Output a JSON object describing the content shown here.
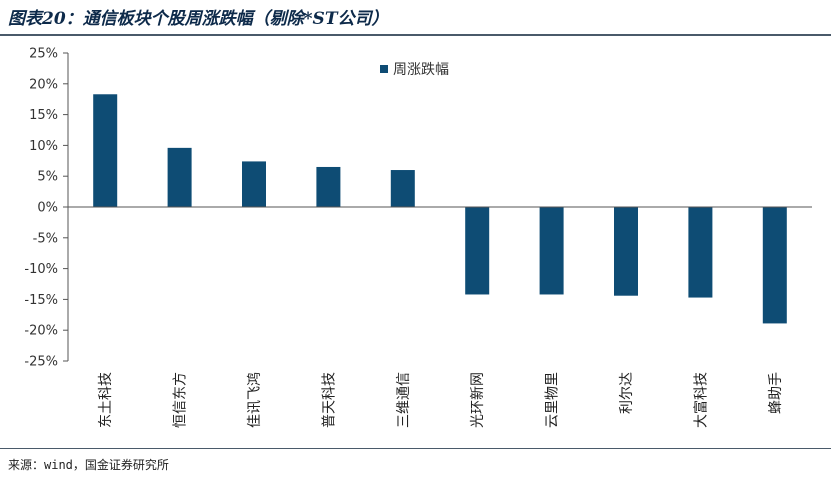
{
  "figure": {
    "title": "图表20：通信板块个股周涨跌幅（剔除*ST公司）",
    "source": "来源：wind，国金证券研究所"
  },
  "chart_data": {
    "type": "bar",
    "categories": [
      "东土科技",
      "恒信东方",
      "佳讯飞鸿",
      "普天科技",
      "三维通信",
      "光环新网",
      "云里物里",
      "利尔达",
      "大富科技",
      "蜂助手"
    ],
    "series": [
      {
        "name": "周涨跌幅",
        "values": [
          18.3,
          9.6,
          7.4,
          6.5,
          6.0,
          -14.2,
          -14.2,
          -14.4,
          -14.7,
          -18.9
        ]
      }
    ],
    "ylim": [
      -25,
      25
    ],
    "yticks": [
      -25,
      -20,
      -15,
      -10,
      -5,
      0,
      5,
      10,
      15,
      20,
      25
    ],
    "ytick_format": "percent",
    "xlabel": "",
    "ylabel": "",
    "grid": false,
    "legend_position": "top",
    "colors": {
      "bar": "#0e4c74",
      "axis": "#555555"
    }
  }
}
